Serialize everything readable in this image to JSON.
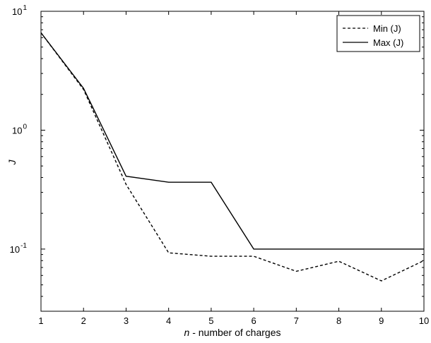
{
  "chart_data": {
    "type": "line",
    "title": "",
    "xlabel_var": "n",
    "xlabel_rest": " - number of charges",
    "ylabel": "J",
    "x": [
      1,
      2,
      3,
      4,
      5,
      6,
      7,
      8,
      9,
      10
    ],
    "xlim": [
      1,
      10
    ],
    "ylim": [
      0.03,
      10
    ],
    "yscale": "log",
    "x_ticks": [
      "1",
      "2",
      "3",
      "4",
      "5",
      "6",
      "7",
      "8",
      "9",
      "10"
    ],
    "y_ticks": [
      {
        "value": 10,
        "base": "10",
        "exp": "1"
      },
      {
        "value": 1,
        "base": "10",
        "exp": "0"
      },
      {
        "value": 0.1,
        "base": "10",
        "exp": "-1"
      }
    ],
    "grid": false,
    "legend_position": "top-right",
    "series": [
      {
        "name": "Min (J)",
        "style": "dashed",
        "color": "#000000",
        "values": [
          6.6,
          2.2,
          0.35,
          0.093,
          0.087,
          0.087,
          0.065,
          0.079,
          0.054,
          0.08
        ]
      },
      {
        "name": "Max (J)",
        "style": "solid",
        "color": "#000000",
        "values": [
          6.6,
          2.25,
          0.41,
          0.365,
          0.365,
          0.1,
          0.1,
          0.1,
          0.1,
          0.1
        ]
      }
    ]
  }
}
